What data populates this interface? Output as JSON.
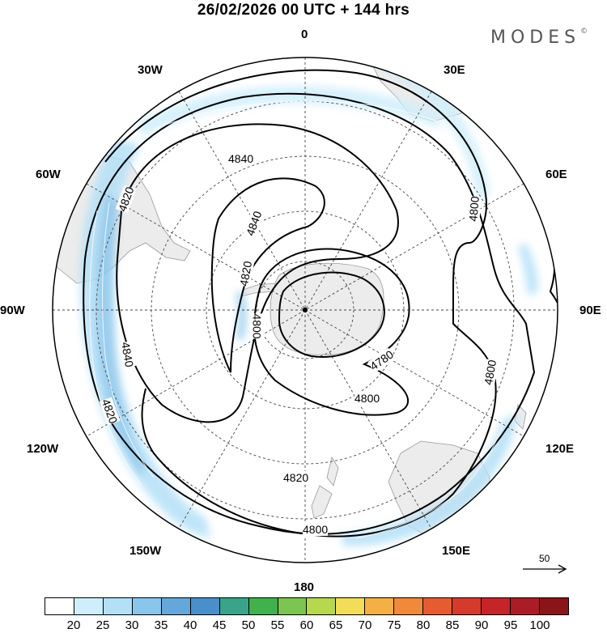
{
  "title": "26/02/2026  00 UTC  + 144 hrs",
  "logo": "MODES",
  "logo_mark": "©",
  "lon_labels": {
    "top": "0",
    "bottom": "180",
    "left": "90W",
    "right": "90E",
    "nw1": "30W",
    "nw2": "60W",
    "ne1": "30E",
    "ne2": "60E",
    "sw1": "120W",
    "sw2": "150W",
    "se1": "120E",
    "se2": "150E"
  },
  "contour_labels": [
    "4840",
    "4820",
    "4840",
    "4820",
    "4800",
    "4800",
    "4780",
    "4800",
    "4800",
    "4820",
    "4840",
    "4820",
    "4800"
  ],
  "reference_vector": "50",
  "colorbar": {
    "colors": [
      "#ffffff",
      "#cfeefc",
      "#b4e0f7",
      "#89c6ec",
      "#64a8db",
      "#4a8fca",
      "#3aa48a",
      "#41b14d",
      "#7cc550",
      "#b6d84e",
      "#f2dd5b",
      "#f4b046",
      "#f08a3a",
      "#e65c30",
      "#d63a2c",
      "#c52428",
      "#aa1c26",
      "#8a1418"
    ],
    "labels": [
      "20",
      "25",
      "30",
      "35",
      "40",
      "45",
      "50",
      "55",
      "60",
      "65",
      "70",
      "75",
      "80",
      "85",
      "90",
      "95",
      "100"
    ]
  }
}
